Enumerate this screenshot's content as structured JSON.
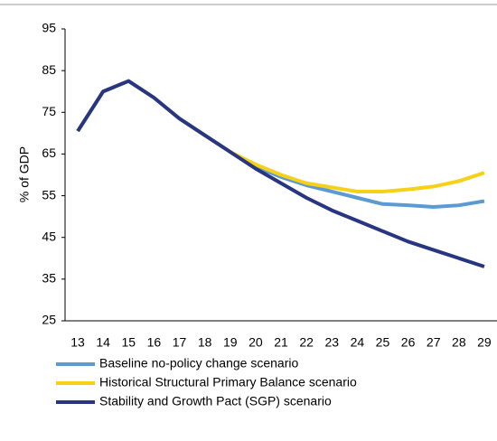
{
  "chart_data": {
    "type": "line",
    "y_label": "% of GDP",
    "categories": [
      "13",
      "14",
      "15",
      "16",
      "17",
      "18",
      "19",
      "20",
      "21",
      "22",
      "23",
      "24",
      "25",
      "26",
      "27",
      "28",
      "29"
    ],
    "series": [
      {
        "name": "Baseline no-policy change scenario",
        "color": "#5b9bd5",
        "values": [
          70.5,
          80,
          82.5,
          78.5,
          73.5,
          69.5,
          65.5,
          62,
          59.5,
          57.5,
          56,
          54.5,
          53,
          52.7,
          52.3,
          52.7,
          53.7
        ]
      },
      {
        "name": "Historical Structural Primary Balance scenario",
        "color": "#f7d117",
        "values": [
          70.5,
          80,
          82.5,
          78.5,
          73.5,
          69.5,
          65.5,
          62.5,
          60,
          58,
          57,
          56,
          56,
          56.5,
          57.2,
          58.5,
          60.5
        ]
      },
      {
        "name": "Stability and Growth Pact (SGP) scenario",
        "color": "#283583",
        "values": [
          70.5,
          80,
          82.5,
          78.5,
          73.5,
          69.5,
          65.5,
          61.5,
          58,
          54.5,
          51.5,
          49,
          46.5,
          44,
          42,
          40,
          38
        ]
      }
    ],
    "ylim": [
      25,
      95
    ],
    "yticks": [
      25,
      35,
      45,
      55,
      65,
      75,
      85,
      95
    ],
    "grid": false,
    "legend": "bottom"
  }
}
